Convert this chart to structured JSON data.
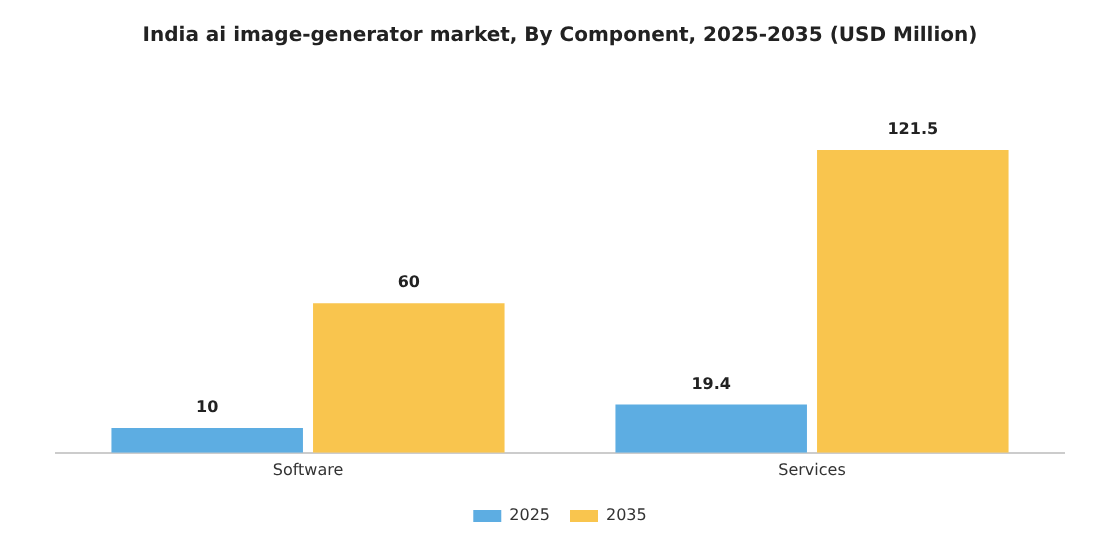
{
  "chart_data": {
    "type": "bar",
    "title": "India ai image-generator market, By Component, 2025-2035 (USD Million)",
    "categories": [
      "Software",
      "Services"
    ],
    "series": [
      {
        "name": "2025",
        "color": "#5dade2",
        "values": [
          10,
          19.4
        ]
      },
      {
        "name": "2035",
        "color": "#f9c54e",
        "values": [
          60,
          121.5
        ]
      }
    ],
    "data_labels": true,
    "legend": "bottom",
    "grid": false
  }
}
